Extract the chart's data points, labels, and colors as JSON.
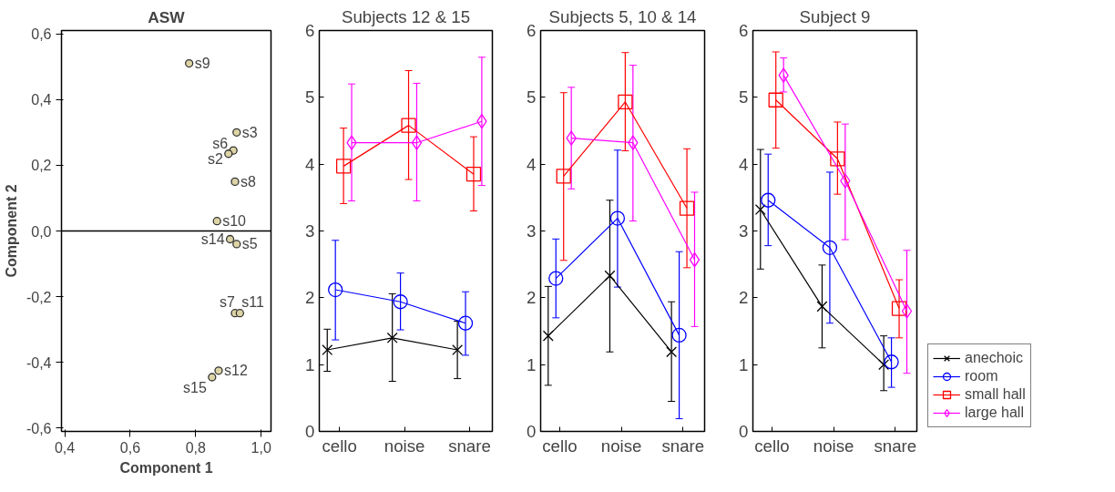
{
  "chart_data": [
    {
      "type": "scatter",
      "title": "ASW",
      "xlabel": "Component 1",
      "ylabel": "Component 2",
      "xlim": [
        0.39,
        1.03
      ],
      "ylim": [
        -0.61,
        0.61
      ],
      "xticks": [
        {
          "value": 0.4,
          "label": "0,4"
        },
        {
          "value": 0.6,
          "label": "0,6"
        },
        {
          "value": 0.8,
          "label": "0,8"
        },
        {
          "value": 1.0,
          "label": "1,0"
        }
      ],
      "yticks": [
        {
          "value": -0.6,
          "label": "-0,6"
        },
        {
          "value": -0.4,
          "label": "-0,4"
        },
        {
          "value": -0.2,
          "label": "-0,2"
        },
        {
          "value": 0,
          "label": "0,0"
        },
        {
          "value": 0.2,
          "label": "0,2"
        },
        {
          "value": 0.4,
          "label": "0,4"
        },
        {
          "value": 0.6,
          "label": "0,6"
        }
      ],
      "grid": false,
      "marker": "circle",
      "series": [
        {
          "color": "#ddd4a6",
          "x": [
            0.78,
            0.925,
            0.915,
            0.9,
            0.92,
            0.865,
            0.905,
            0.925,
            0.92,
            0.935,
            0.87,
            0.85
          ],
          "values": [
            0.51,
            0.3,
            0.245,
            0.235,
            0.15,
            0.03,
            -0.025,
            -0.04,
            -0.25,
            -0.25,
            -0.425,
            -0.445
          ]
        }
      ],
      "annotations": [
        {
          "text": "s9",
          "x": 0.78,
          "y": 0.51
        },
        {
          "text": "s3",
          "x": 0.925,
          "y": 0.3
        },
        {
          "text": "s6",
          "x": 0.915,
          "y": 0.245
        },
        {
          "text": "s2",
          "x": 0.9,
          "y": 0.235
        },
        {
          "text": "s8",
          "x": 0.92,
          "y": 0.15
        },
        {
          "text": "s10",
          "x": 0.865,
          "y": 0.03
        },
        {
          "text": "s14",
          "x": 0.905,
          "y": -0.025
        },
        {
          "text": "s5",
          "x": 0.925,
          "y": -0.04
        },
        {
          "text": "s7",
          "x": 0.92,
          "y": -0.25
        },
        {
          "text": "s11",
          "x": 0.935,
          "y": -0.25
        },
        {
          "text": "s12",
          "x": 0.87,
          "y": -0.425
        },
        {
          "text": "s15",
          "x": 0.85,
          "y": -0.445
        }
      ],
      "ref_lines": [
        {
          "axis": "y",
          "value": 0
        }
      ]
    },
    {
      "type": "line",
      "title": "Subjects 12 & 15",
      "categories": [
        "cello",
        "noise",
        "snare"
      ],
      "ylim": [
        0,
        6
      ],
      "yticks": [
        0,
        1,
        2,
        3,
        4,
        5,
        6
      ],
      "grid": false,
      "legend": false,
      "series": [
        {
          "color": "#000000",
          "marker": "cross",
          "values": [
            1.22,
            1.4,
            1.22
          ],
          "errors": [
            [
              0.9,
              1.53
            ],
            [
              0.75,
              2.06
            ],
            [
              0.79,
              1.65
            ]
          ]
        },
        {
          "color": "#0000ff",
          "marker": "circle",
          "values": [
            2.12,
            1.94,
            1.62
          ],
          "errors": [
            [
              1.37,
              2.86
            ],
            [
              1.52,
              2.37
            ],
            [
              1.14,
              2.09
            ]
          ]
        },
        {
          "color": "#ff0000",
          "marker": "square",
          "values": [
            3.97,
            4.58,
            3.85
          ],
          "errors": [
            [
              3.41,
              4.54
            ],
            [
              3.77,
              5.4
            ],
            [
              3.3,
              4.41
            ]
          ]
        },
        {
          "color": "#ff00ff",
          "marker": "diamond",
          "values": [
            4.32,
            4.32,
            4.64
          ],
          "errors": [
            [
              3.45,
              5.2
            ],
            [
              3.45,
              5.21
            ],
            [
              3.68,
              5.6
            ]
          ]
        }
      ]
    },
    {
      "type": "line",
      "title": "Subjects 5, 10 & 14",
      "categories": [
        "cello",
        "noise",
        "snare"
      ],
      "ylim": [
        0,
        6
      ],
      "yticks": [
        0,
        1,
        2,
        3,
        4,
        5,
        6
      ],
      "grid": false,
      "legend": false,
      "series": [
        {
          "color": "#000000",
          "marker": "cross",
          "values": [
            1.43,
            2.33,
            1.19
          ],
          "errors": [
            [
              0.69,
              2.17
            ],
            [
              1.19,
              3.46
            ],
            [
              0.45,
              1.94
            ]
          ]
        },
        {
          "color": "#0000ff",
          "marker": "circle",
          "values": [
            2.29,
            3.19,
            1.44
          ],
          "errors": [
            [
              1.7,
              2.88
            ],
            [
              2.16,
              4.21
            ],
            [
              0.19,
              2.69
            ]
          ]
        },
        {
          "color": "#ff0000",
          "marker": "square",
          "values": [
            3.82,
            4.93,
            3.34
          ],
          "errors": [
            [
              2.56,
              5.07
            ],
            [
              4.2,
              5.67
            ],
            [
              2.45,
              4.23
            ]
          ]
        },
        {
          "color": "#ff00ff",
          "marker": "diamond",
          "values": [
            4.39,
            4.32,
            2.57
          ],
          "errors": [
            [
              3.63,
              5.15
            ],
            [
              3.15,
              5.48
            ],
            [
              1.57,
              3.58
            ]
          ]
        }
      ]
    },
    {
      "type": "line",
      "title": "Subject 9",
      "categories": [
        "cello",
        "noise",
        "snare"
      ],
      "ylim": [
        0,
        6
      ],
      "yticks": [
        0,
        1,
        2,
        3,
        4,
        5,
        6
      ],
      "grid": false,
      "legend": "right",
      "series": [
        {
          "name": "anechoic",
          "color": "#000000",
          "marker": "cross",
          "values": [
            3.32,
            1.87,
            1.0
          ],
          "errors": [
            [
              2.43,
              4.22
            ],
            [
              1.25,
              2.49
            ],
            [
              0.61,
              1.43
            ]
          ]
        },
        {
          "name": "room",
          "color": "#0000ff",
          "marker": "circle",
          "values": [
            3.46,
            2.75,
            1.04
          ],
          "errors": [
            [
              2.78,
              4.15
            ],
            [
              1.62,
              3.88
            ],
            [
              0.66,
              1.4
            ]
          ]
        },
        {
          "name": "small hall",
          "color": "#ff0000",
          "marker": "square",
          "values": [
            4.96,
            4.08,
            1.84
          ],
          "errors": [
            [
              4.24,
              5.68
            ],
            [
              3.55,
              4.63
            ],
            [
              1.4,
              2.27
            ]
          ]
        },
        {
          "name": "large hall",
          "color": "#ff00ff",
          "marker": "diamond",
          "values": [
            5.33,
            3.75,
            1.8
          ],
          "errors": [
            [
              5.08,
              5.59
            ],
            [
              2.87,
              4.6
            ],
            [
              0.87,
              2.71
            ]
          ]
        }
      ]
    }
  ]
}
